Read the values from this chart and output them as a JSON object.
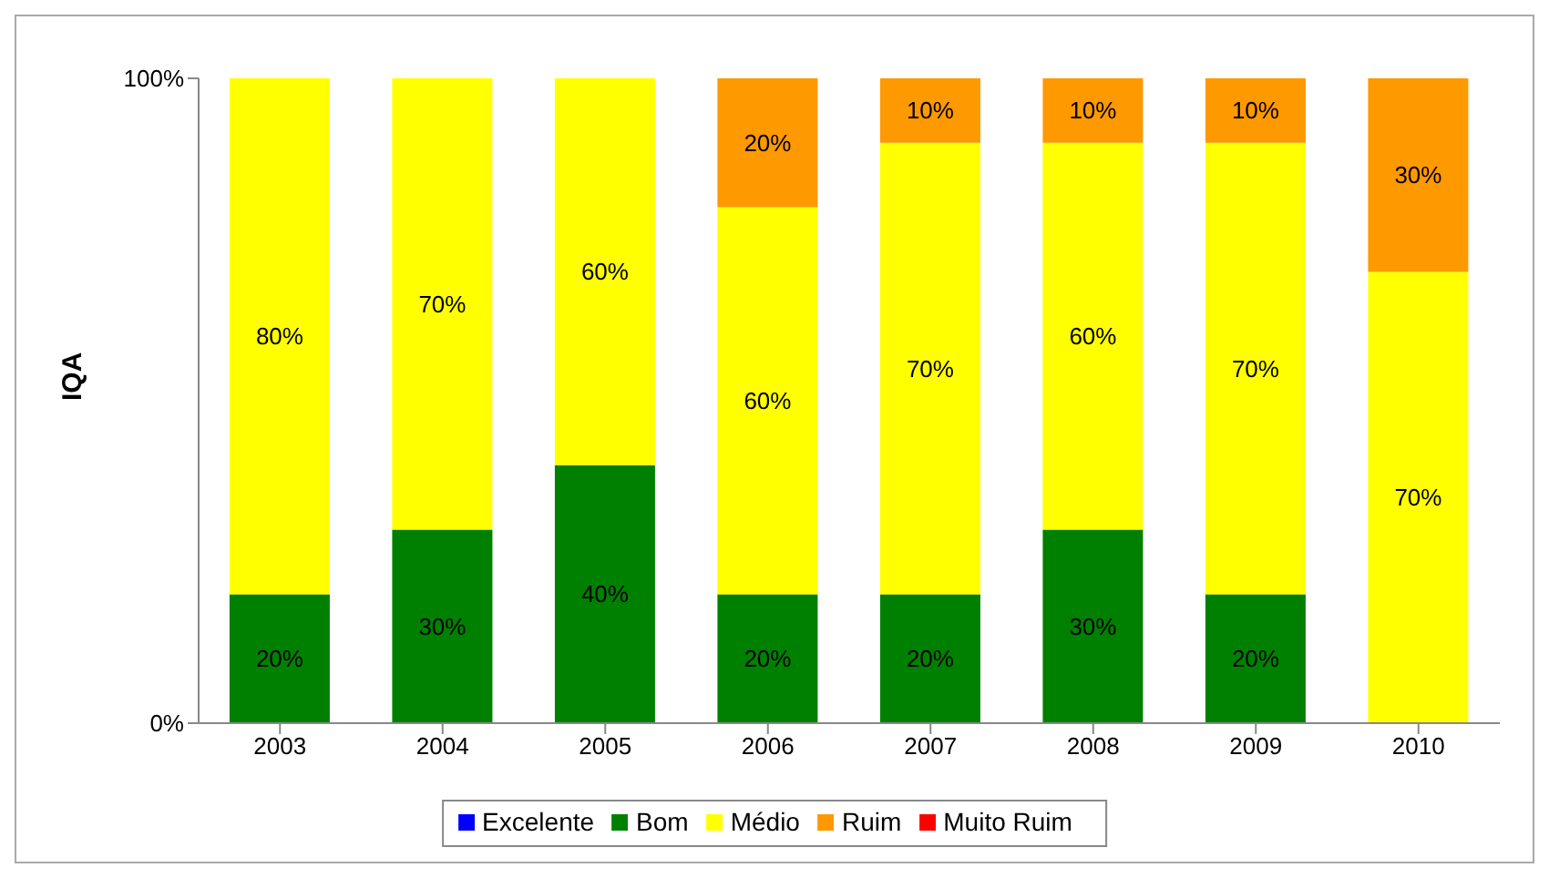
{
  "chart_data": {
    "type": "bar",
    "stacked": true,
    "ylabel": "IQA",
    "categories": [
      "2003",
      "2004",
      "2005",
      "2006",
      "2007",
      "2008",
      "2009",
      "2010"
    ],
    "series": [
      {
        "name": "Excelente",
        "color": "#0000ff",
        "values": [
          0,
          0,
          0,
          0,
          0,
          0,
          0,
          0
        ],
        "value_labels": [
          null,
          null,
          null,
          null,
          null,
          null,
          null,
          null
        ]
      },
      {
        "name": "Bom",
        "color": "#008000",
        "values": [
          20,
          30,
          40,
          20,
          20,
          30,
          20,
          0
        ],
        "value_labels": [
          "20%",
          "30%",
          "40%",
          "20%",
          "20%",
          "30%",
          "20%",
          null
        ]
      },
      {
        "name": "Médio",
        "color": "#ffff00",
        "values": [
          80,
          70,
          60,
          60,
          70,
          60,
          70,
          70
        ],
        "value_labels": [
          "80%",
          "70%",
          "60%",
          "60%",
          "70%",
          "60%",
          "70%",
          "70%"
        ]
      },
      {
        "name": "Ruim",
        "color": "#ff9900",
        "values": [
          0,
          0,
          0,
          20,
          10,
          10,
          10,
          30
        ],
        "value_labels": [
          null,
          null,
          null,
          "20%",
          "10%",
          "10%",
          "10%",
          "30%"
        ]
      },
      {
        "name": "Muito Ruim",
        "color": "#ff0000",
        "values": [
          0,
          0,
          0,
          0,
          0,
          0,
          0,
          0
        ],
        "value_labels": [
          null,
          null,
          null,
          null,
          null,
          null,
          null,
          null
        ]
      }
    ],
    "ylim": [
      0,
      100
    ],
    "yticks": [
      {
        "value": 0,
        "label": "0%"
      },
      {
        "value": 100,
        "label": "100%"
      }
    ],
    "grid": false,
    "legend": "bottom"
  }
}
